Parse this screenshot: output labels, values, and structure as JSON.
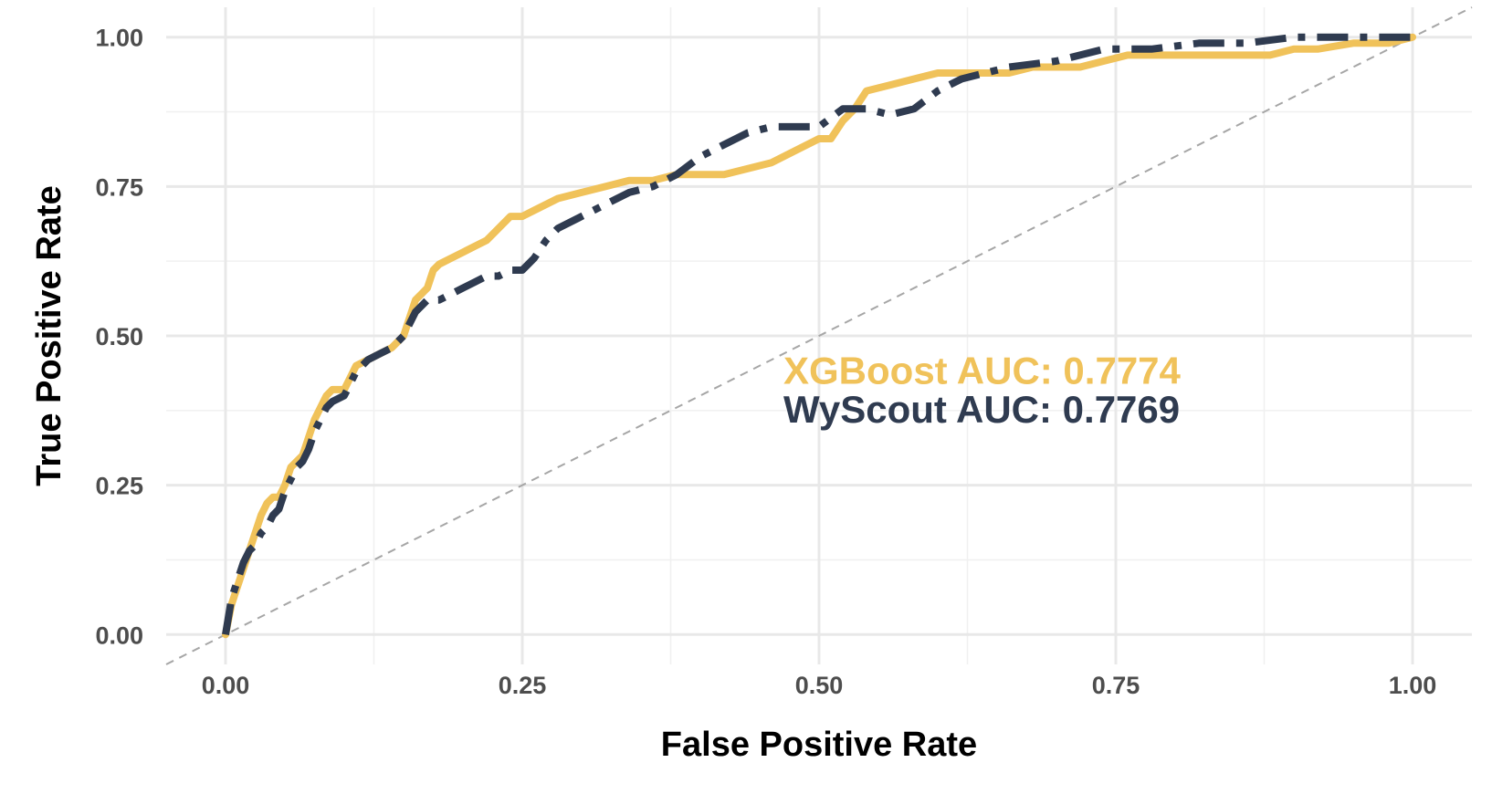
{
  "chart_data": {
    "type": "line",
    "xlabel": "False Positive Rate",
    "ylabel": "True Positive Rate",
    "xlim": [
      -0.05,
      1.05
    ],
    "ylim": [
      -0.05,
      1.05
    ],
    "x_ticks": [
      "0.00",
      "0.25",
      "0.50",
      "0.75",
      "1.00"
    ],
    "y_ticks": [
      "0.00",
      "0.25",
      "0.50",
      "0.75",
      "1.00"
    ],
    "grid": true,
    "reference_line": {
      "style": "dashed",
      "color": "#a6a6a6"
    },
    "series": [
      {
        "name": "XGBoost",
        "color": "#f0c25a",
        "style": "solid",
        "x": [
          0,
          0.005,
          0.01,
          0.015,
          0.02,
          0.025,
          0.03,
          0.035,
          0.04,
          0.045,
          0.05,
          0.055,
          0.06,
          0.065,
          0.07,
          0.075,
          0.08,
          0.085,
          0.09,
          0.1,
          0.11,
          0.12,
          0.13,
          0.14,
          0.15,
          0.155,
          0.16,
          0.165,
          0.17,
          0.175,
          0.18,
          0.19,
          0.2,
          0.21,
          0.22,
          0.23,
          0.24,
          0.25,
          0.26,
          0.28,
          0.3,
          0.32,
          0.34,
          0.36,
          0.38,
          0.4,
          0.42,
          0.44,
          0.46,
          0.48,
          0.5,
          0.51,
          0.52,
          0.53,
          0.54,
          0.56,
          0.58,
          0.6,
          0.62,
          0.64,
          0.66,
          0.68,
          0.7,
          0.72,
          0.74,
          0.76,
          0.8,
          0.84,
          0.88,
          0.9,
          0.92,
          0.95,
          0.98,
          1.0
        ],
        "y": [
          0,
          0.05,
          0.08,
          0.11,
          0.14,
          0.17,
          0.2,
          0.22,
          0.23,
          0.23,
          0.25,
          0.28,
          0.29,
          0.3,
          0.33,
          0.36,
          0.38,
          0.4,
          0.41,
          0.41,
          0.45,
          0.46,
          0.47,
          0.48,
          0.5,
          0.53,
          0.56,
          0.57,
          0.58,
          0.61,
          0.62,
          0.63,
          0.64,
          0.65,
          0.66,
          0.68,
          0.7,
          0.7,
          0.71,
          0.73,
          0.74,
          0.75,
          0.76,
          0.76,
          0.77,
          0.77,
          0.77,
          0.78,
          0.79,
          0.81,
          0.83,
          0.83,
          0.86,
          0.88,
          0.91,
          0.92,
          0.93,
          0.94,
          0.94,
          0.94,
          0.94,
          0.95,
          0.95,
          0.95,
          0.96,
          0.97,
          0.97,
          0.97,
          0.97,
          0.98,
          0.98,
          0.99,
          0.99,
          1.0
        ]
      },
      {
        "name": "WyScout",
        "color": "#2f3b50",
        "style": "dashdot",
        "x": [
          0,
          0.005,
          0.01,
          0.015,
          0.02,
          0.025,
          0.03,
          0.035,
          0.04,
          0.045,
          0.05,
          0.055,
          0.06,
          0.065,
          0.07,
          0.075,
          0.08,
          0.085,
          0.09,
          0.1,
          0.11,
          0.12,
          0.13,
          0.14,
          0.15,
          0.16,
          0.17,
          0.18,
          0.19,
          0.2,
          0.21,
          0.22,
          0.23,
          0.24,
          0.25,
          0.26,
          0.27,
          0.28,
          0.3,
          0.32,
          0.34,
          0.36,
          0.38,
          0.4,
          0.42,
          0.44,
          0.46,
          0.48,
          0.5,
          0.52,
          0.54,
          0.56,
          0.58,
          0.6,
          0.62,
          0.64,
          0.66,
          0.7,
          0.74,
          0.78,
          0.82,
          0.86,
          0.9,
          0.94,
          0.98,
          1.0
        ],
        "y": [
          0,
          0.06,
          0.09,
          0.12,
          0.14,
          0.15,
          0.17,
          0.18,
          0.2,
          0.21,
          0.24,
          0.26,
          0.28,
          0.29,
          0.31,
          0.34,
          0.36,
          0.38,
          0.39,
          0.4,
          0.44,
          0.46,
          0.47,
          0.48,
          0.5,
          0.54,
          0.56,
          0.56,
          0.57,
          0.58,
          0.59,
          0.6,
          0.6,
          0.61,
          0.61,
          0.63,
          0.66,
          0.68,
          0.7,
          0.72,
          0.74,
          0.75,
          0.77,
          0.8,
          0.82,
          0.84,
          0.85,
          0.85,
          0.85,
          0.88,
          0.88,
          0.87,
          0.88,
          0.91,
          0.93,
          0.94,
          0.95,
          0.96,
          0.98,
          0.98,
          0.99,
          0.99,
          1.0,
          1.0,
          1.0,
          1.0
        ]
      }
    ],
    "annotations": [
      {
        "text": "XGBoost AUC: 0.7774",
        "color": "#f0c25a",
        "x": 0.47,
        "y": 0.42
      },
      {
        "text": "WyScout AUC: 0.7769",
        "color": "#2f3b50",
        "x": 0.47,
        "y": 0.355
      }
    ]
  }
}
